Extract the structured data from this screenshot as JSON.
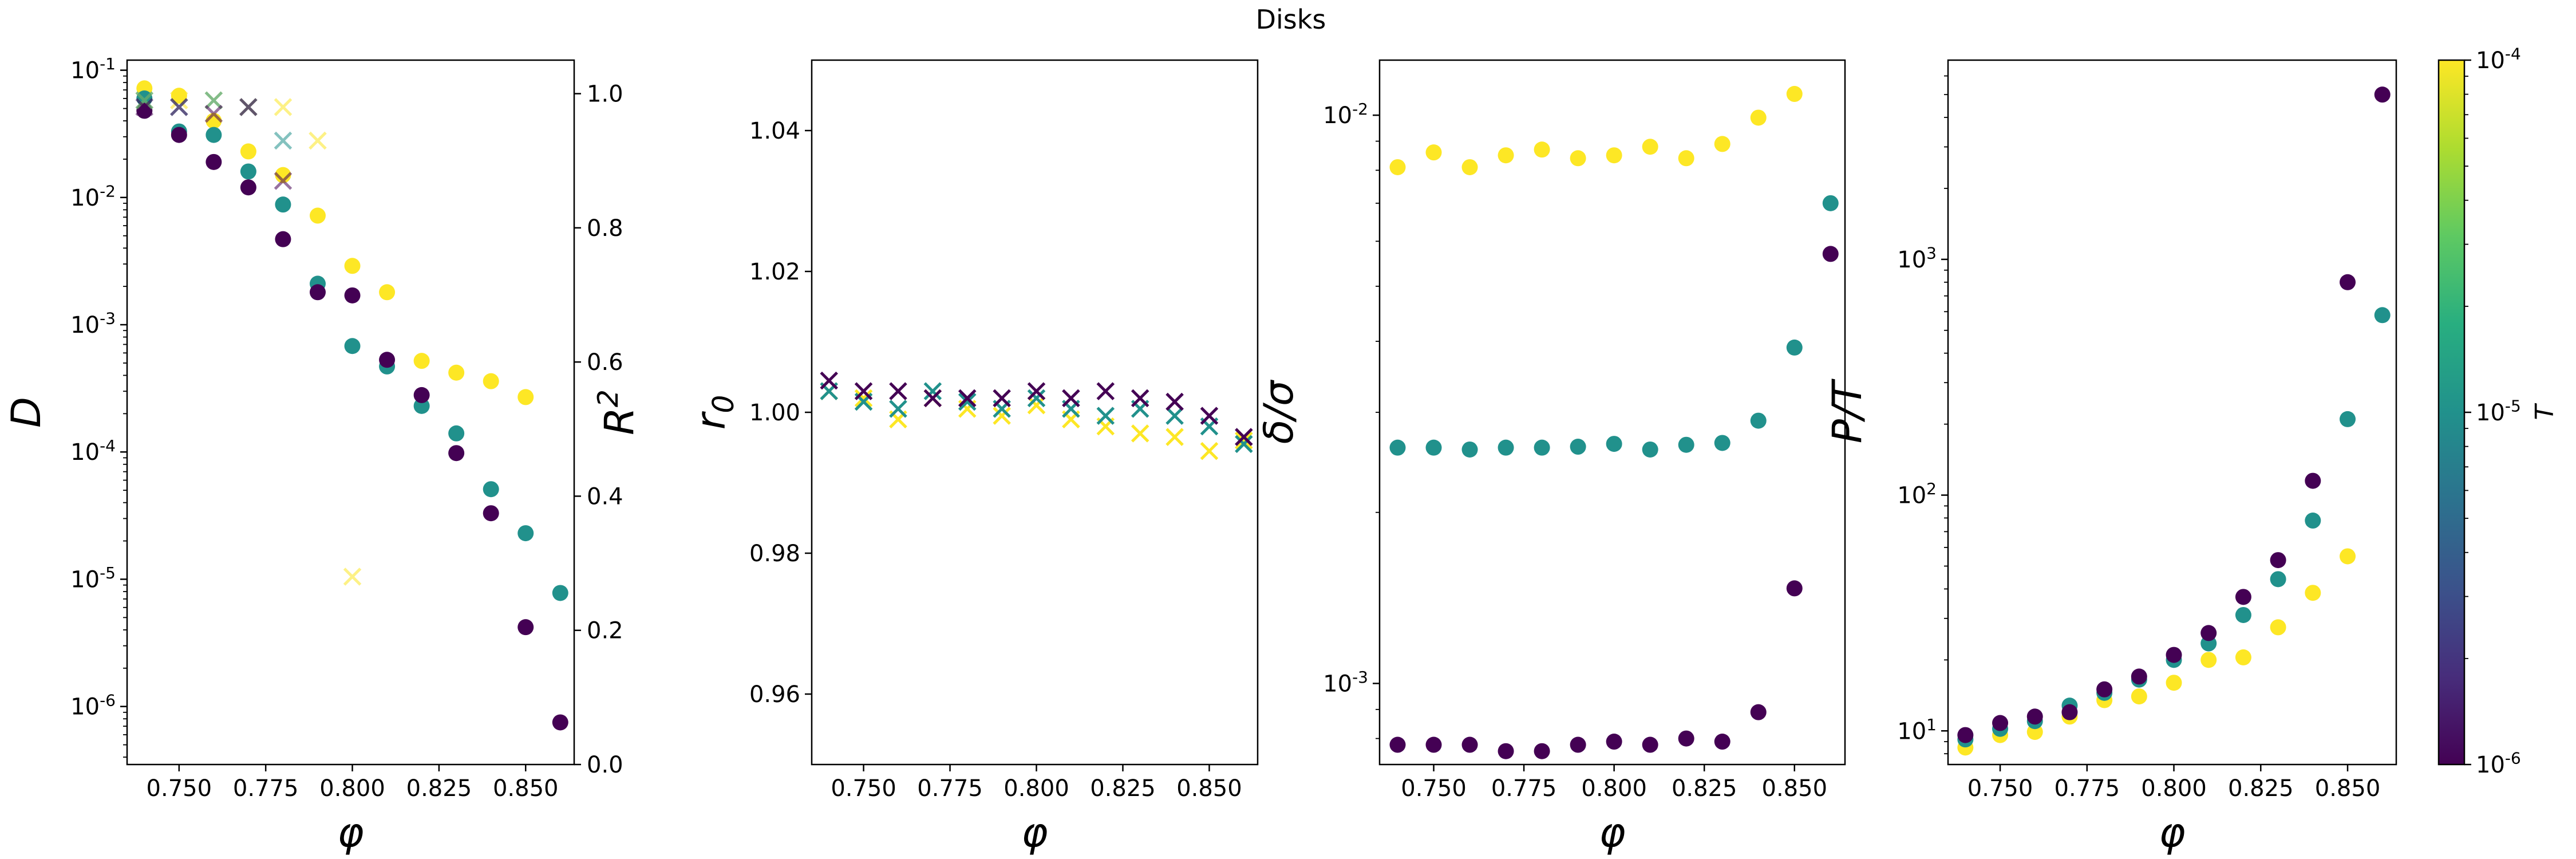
{
  "title": "Disks",
  "colormap": {
    "label": "T",
    "tick_labels": [
      "10^{-6}",
      "10^{-5}",
      "10^{-4}"
    ],
    "min": 1e-06,
    "max": 0.0001,
    "scale": "log",
    "name": "viridis",
    "colors": {
      "T_1e-4": "#fde725",
      "T_1e-5": "#21918c",
      "T_1e-6": "#440154"
    }
  },
  "chart_data": [
    {
      "type": "scatter",
      "xlabel": "φ",
      "ylabel": "D",
      "y2label": "R^2",
      "xlim": [
        0.735,
        0.864
      ],
      "ylim": [
        3.5e-07,
        0.12
      ],
      "yscale": "log",
      "y2lim": [
        0,
        1.05
      ],
      "xticks": [
        "0.750",
        "0.775",
        "0.800",
        "0.825",
        "0.850"
      ],
      "yticks": [
        "10^{-6}",
        "10^{-5}",
        "10^{-4}",
        "10^{-3}",
        "10^{-2}",
        "10^{-1}"
      ],
      "y2ticks": [
        "0.0",
        "0.2",
        "0.4",
        "0.6",
        "0.8",
        "1.0"
      ],
      "series": [
        {
          "T": 0.0001,
          "color": "#fde725",
          "marker": "o",
          "axis": "left",
          "x": [
            0.74,
            0.75,
            0.76,
            0.77,
            0.78,
            0.79,
            0.8,
            0.81,
            0.82,
            0.83,
            0.84,
            0.85
          ],
          "y": [
            0.072,
            0.063,
            0.04,
            0.023,
            0.015,
            0.0072,
            0.0029,
            0.0018,
            0.00052,
            0.00042,
            0.00036,
            0.00027
          ]
        },
        {
          "T": 1e-05,
          "color": "#21918c",
          "marker": "o",
          "axis": "left",
          "x": [
            0.74,
            0.75,
            0.76,
            0.77,
            0.78,
            0.79,
            0.8,
            0.81,
            0.82,
            0.83,
            0.84,
            0.85,
            0.86
          ],
          "y": [
            0.06,
            0.033,
            0.031,
            0.016,
            0.0088,
            0.0021,
            0.00068,
            0.00047,
            0.00023,
            0.00014,
            5.1e-05,
            2.3e-05,
            7.8e-06
          ]
        },
        {
          "T": 1e-06,
          "color": "#440154",
          "marker": "o",
          "axis": "left",
          "x": [
            0.74,
            0.75,
            0.76,
            0.77,
            0.78,
            0.79,
            0.8,
            0.81,
            0.82,
            0.83,
            0.84,
            0.85,
            0.86
          ],
          "y": [
            0.048,
            0.031,
            0.019,
            0.012,
            0.0047,
            0.0018,
            0.0017,
            0.00053,
            0.00028,
            9.8e-05,
            3.3e-05,
            4.2e-06,
            7.5e-07
          ]
        },
        {
          "T": 0.0001,
          "color": "#fde725",
          "marker": "x",
          "axis": "right",
          "alpha": 0.55,
          "x": [
            0.74,
            0.75,
            0.76,
            0.77,
            0.78,
            0.79,
            0.8
          ],
          "y": [
            0.99,
            0.99,
            0.99,
            0.98,
            0.98,
            0.93,
            0.28
          ]
        },
        {
          "T": 1e-05,
          "color": "#21918c",
          "marker": "x",
          "axis": "right",
          "alpha": 0.55,
          "x": [
            0.74,
            0.75,
            0.76,
            0.77,
            0.78
          ],
          "y": [
            0.99,
            0.98,
            0.99,
            0.98,
            0.93
          ]
        },
        {
          "T": 1e-06,
          "color": "#440154",
          "marker": "x",
          "axis": "right",
          "alpha": 0.55,
          "x": [
            0.74,
            0.75,
            0.76,
            0.77,
            0.78
          ],
          "y": [
            0.98,
            0.98,
            0.97,
            0.98,
            0.87
          ]
        }
      ]
    },
    {
      "type": "scatter",
      "xlabel": "φ",
      "ylabel": "r_0",
      "xlim": [
        0.735,
        0.864
      ],
      "ylim": [
        0.95,
        1.05
      ],
      "xticks": [
        "0.750",
        "0.775",
        "0.800",
        "0.825",
        "0.850"
      ],
      "yticks": [
        "0.96",
        "0.98",
        "1.00",
        "1.02",
        "1.04"
      ],
      "series": [
        {
          "T": 0.0001,
          "color": "#fde725",
          "marker": "x",
          "x": [
            0.74,
            0.75,
            0.76,
            0.77,
            0.78,
            0.79,
            0.8,
            0.81,
            0.82,
            0.83,
            0.84,
            0.85,
            0.86
          ],
          "y": [
            1.003,
            1.002,
            0.999,
            1.002,
            1.0005,
            0.9995,
            1.001,
            0.999,
            0.998,
            0.997,
            0.9965,
            0.9945,
            0.996
          ]
        },
        {
          "T": 1e-05,
          "color": "#21918c",
          "marker": "x",
          "x": [
            0.74,
            0.75,
            0.76,
            0.77,
            0.78,
            0.79,
            0.8,
            0.81,
            0.82,
            0.83,
            0.84,
            0.85,
            0.86
          ],
          "y": [
            1.003,
            1.0015,
            1.0005,
            1.003,
            1.0015,
            1.0005,
            1.002,
            1.0005,
            0.9995,
            1.0005,
            0.9995,
            0.998,
            0.9955
          ]
        },
        {
          "T": 1e-06,
          "color": "#440154",
          "marker": "x",
          "x": [
            0.74,
            0.75,
            0.76,
            0.77,
            0.78,
            0.79,
            0.8,
            0.81,
            0.82,
            0.83,
            0.84,
            0.85,
            0.86
          ],
          "y": [
            1.0045,
            1.003,
            1.003,
            1.002,
            1.002,
            1.002,
            1.003,
            1.002,
            1.003,
            1.002,
            1.0015,
            0.9995,
            0.9965
          ]
        }
      ]
    },
    {
      "type": "scatter",
      "xlabel": "φ",
      "ylabel": "δ/σ",
      "xlim": [
        0.735,
        0.864
      ],
      "ylim": [
        0.00072,
        0.0125
      ],
      "yscale": "log",
      "xticks": [
        "0.750",
        "0.775",
        "0.800",
        "0.825",
        "0.850"
      ],
      "yticks": [
        "10^{-3}",
        "10^{-2}"
      ],
      "series": [
        {
          "T": 0.0001,
          "color": "#fde725",
          "marker": "o",
          "x": [
            0.74,
            0.75,
            0.76,
            0.77,
            0.78,
            0.79,
            0.8,
            0.81,
            0.82,
            0.83,
            0.84,
            0.85
          ],
          "y": [
            0.0081,
            0.0086,
            0.0081,
            0.0085,
            0.0087,
            0.0084,
            0.0085,
            0.0088,
            0.0084,
            0.0089,
            0.0099,
            0.0109
          ]
        },
        {
          "T": 1e-05,
          "color": "#21918c",
          "marker": "o",
          "x": [
            0.74,
            0.75,
            0.76,
            0.77,
            0.78,
            0.79,
            0.8,
            0.81,
            0.82,
            0.83,
            0.84,
            0.85,
            0.86
          ],
          "y": [
            0.0026,
            0.0026,
            0.00258,
            0.0026,
            0.0026,
            0.00261,
            0.00264,
            0.00258,
            0.00263,
            0.00265,
            0.0029,
            0.0039,
            0.007
          ]
        },
        {
          "T": 1e-06,
          "color": "#440154",
          "marker": "o",
          "x": [
            0.74,
            0.75,
            0.76,
            0.77,
            0.78,
            0.79,
            0.8,
            0.81,
            0.82,
            0.83,
            0.84,
            0.85,
            0.86
          ],
          "y": [
            0.00078,
            0.00078,
            0.00078,
            0.00076,
            0.00076,
            0.00078,
            0.00079,
            0.00078,
            0.0008,
            0.00079,
            0.00089,
            0.00147,
            0.0057
          ]
        }
      ]
    },
    {
      "type": "scatter",
      "xlabel": "φ",
      "ylabel": "P/T",
      "xlim": [
        0.735,
        0.864
      ],
      "ylim": [
        7.2,
        7000
      ],
      "yscale": "log",
      "xticks": [
        "0.750",
        "0.775",
        "0.800",
        "0.825",
        "0.850"
      ],
      "yticks": [
        "10^{1}",
        "10^{2}",
        "10^{3}"
      ],
      "series": [
        {
          "T": 0.0001,
          "color": "#fde725",
          "marker": "o",
          "x": [
            0.74,
            0.75,
            0.76,
            0.77,
            0.78,
            0.79,
            0.8,
            0.81,
            0.82,
            0.83,
            0.84,
            0.85
          ],
          "y": [
            8.5,
            9.6,
            9.9,
            11.5,
            13.5,
            14.0,
            16.0,
            20.0,
            20.5,
            27.5,
            38.5,
            55.0
          ]
        },
        {
          "T": 1e-05,
          "color": "#21918c",
          "marker": "o",
          "x": [
            0.74,
            0.75,
            0.76,
            0.77,
            0.78,
            0.79,
            0.8,
            0.81,
            0.82,
            0.83,
            0.84,
            0.85,
            0.86
          ],
          "y": [
            9.2,
            10.2,
            11.0,
            12.8,
            14.5,
            16.5,
            20.0,
            23.5,
            31.0,
            44.0,
            78.0,
            210.0,
            580.0
          ]
        },
        {
          "T": 1e-06,
          "color": "#440154",
          "marker": "o",
          "x": [
            0.74,
            0.75,
            0.76,
            0.77,
            0.78,
            0.79,
            0.8,
            0.81,
            0.82,
            0.83,
            0.84,
            0.85,
            0.86
          ],
          "y": [
            9.6,
            10.8,
            11.5,
            12.0,
            15.0,
            17.0,
            21.0,
            26.0,
            37.0,
            53.0,
            115.0,
            800.0,
            5000.0
          ]
        }
      ]
    }
  ]
}
